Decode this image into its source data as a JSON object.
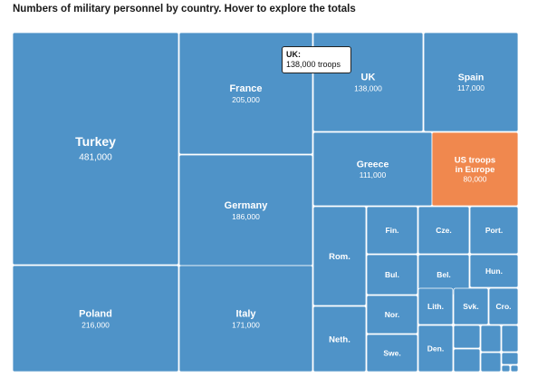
{
  "header": {
    "title": "Numbers of military personnel by country. Hover to explore the totals"
  },
  "tooltip": {
    "heading": "UK:",
    "body": "138,000 troops"
  },
  "colors": {
    "tile": "#4f93c8",
    "highlight": "#f0884e",
    "text": "#ffffff"
  },
  "chart_data": {
    "type": "treemap",
    "title": "Numbers of military personnel by country. Hover to explore the totals",
    "items": [
      {
        "name": "Turkey",
        "value": "481,000",
        "troops": 481000
      },
      {
        "name": "Poland",
        "value": "216,000",
        "troops": 216000
      },
      {
        "name": "France",
        "value": "205,000",
        "troops": 205000
      },
      {
        "name": "Germany",
        "value": "186,000",
        "troops": 186000
      },
      {
        "name": "Italy",
        "value": "171,000",
        "troops": 171000
      },
      {
        "name": "UK",
        "value": "138,000",
        "troops": 138000
      },
      {
        "name": "Spain",
        "value": "117,000",
        "troops": 117000
      },
      {
        "name": "Greece",
        "value": "111,000",
        "troops": 111000
      },
      {
        "name": "US troops in Europe",
        "value": "80,000",
        "troops": 80000,
        "highlight": true
      },
      {
        "name": "Rom."
      },
      {
        "name": "Neth."
      },
      {
        "name": "Fin."
      },
      {
        "name": "Cze."
      },
      {
        "name": "Port."
      },
      {
        "name": "Bul."
      },
      {
        "name": "Bel."
      },
      {
        "name": "Hun."
      },
      {
        "name": "Nor."
      },
      {
        "name": "Lith."
      },
      {
        "name": "Svk."
      },
      {
        "name": "Cro."
      },
      {
        "name": "Swe."
      },
      {
        "name": "Den."
      },
      {
        "name": ""
      },
      {
        "name": ""
      },
      {
        "name": ""
      },
      {
        "name": ""
      },
      {
        "name": ""
      },
      {
        "name": ""
      },
      {
        "name": ""
      },
      {
        "name": ""
      }
    ]
  }
}
